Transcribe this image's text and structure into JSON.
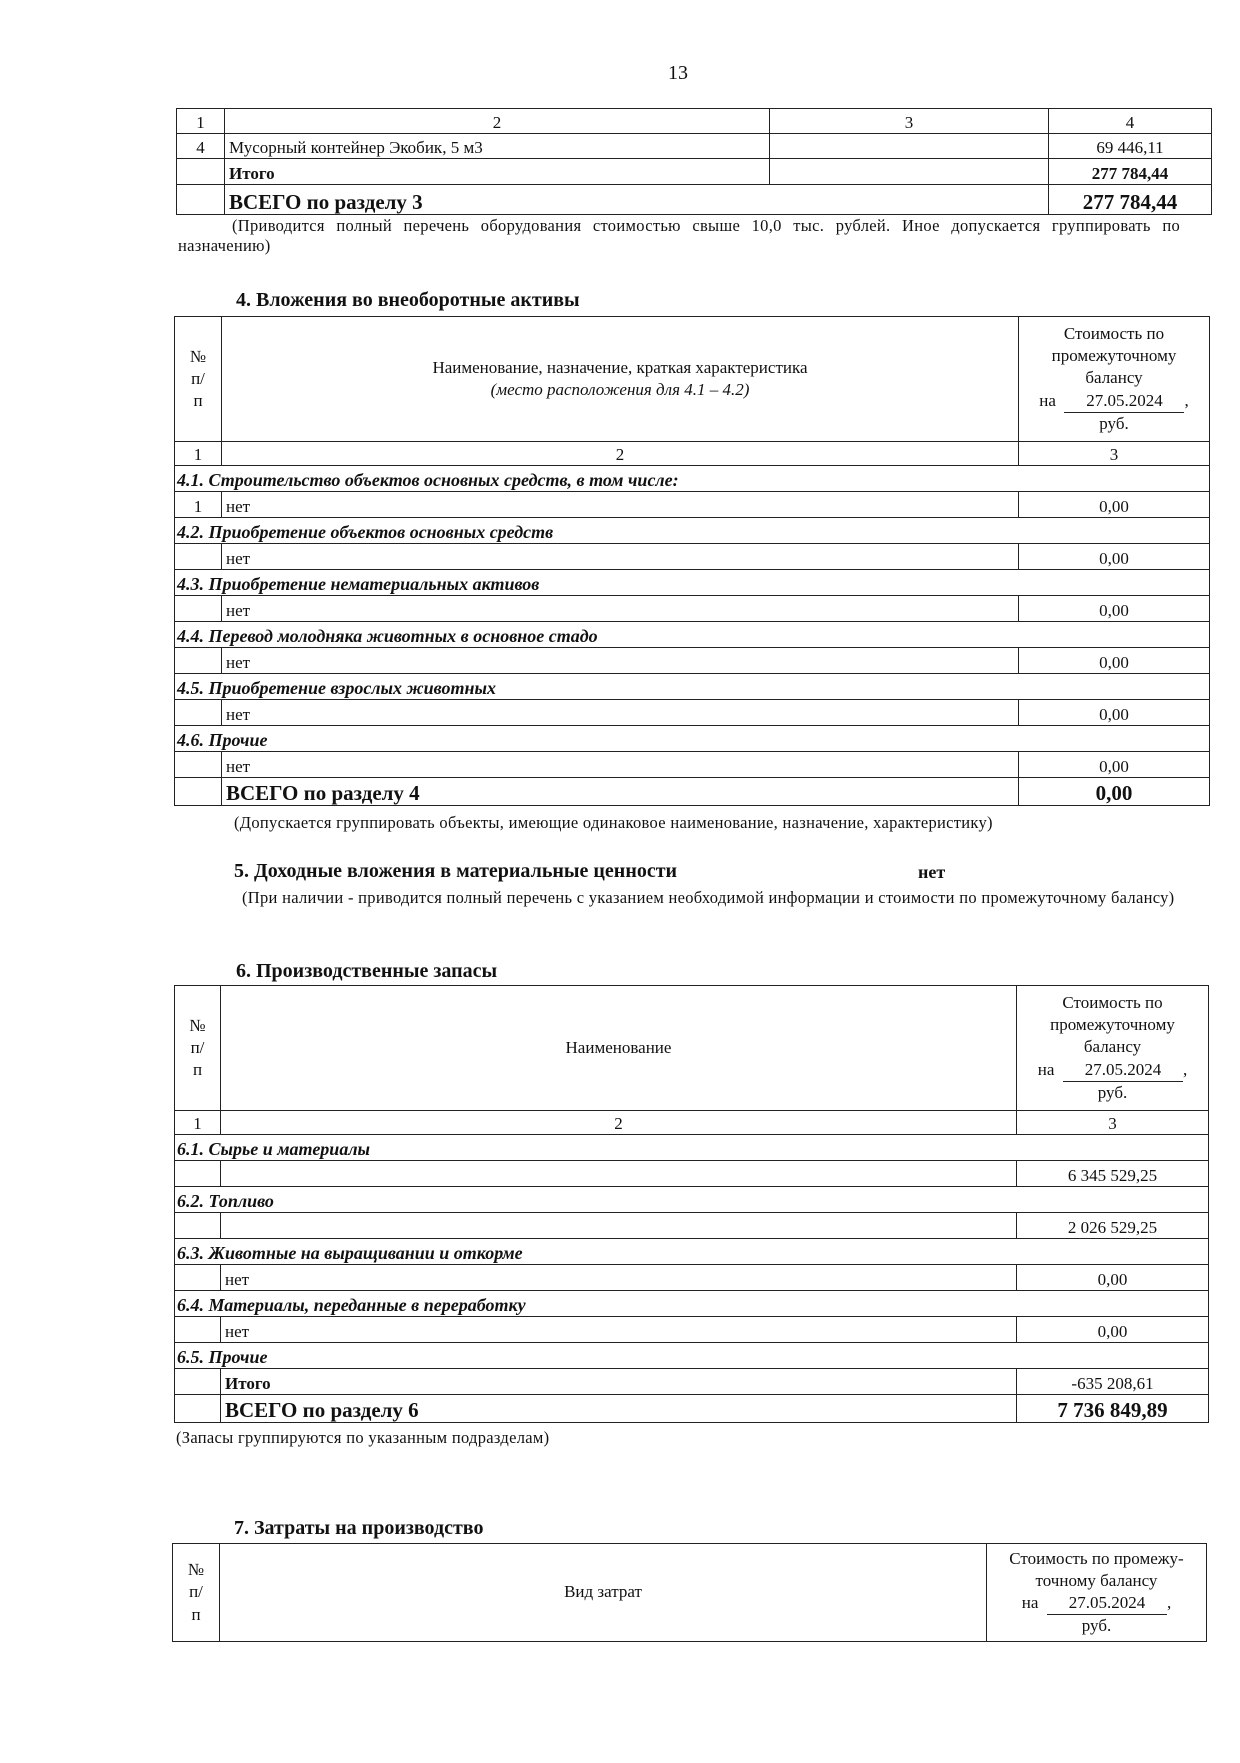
{
  "page_number": "13",
  "section3": {
    "col_numbers": [
      "1",
      "2",
      "3",
      "4"
    ],
    "rows": [
      {
        "no": "4",
        "name": "Мусорный контейнер Экобик, 5 м3",
        "col3": "",
        "value": "69 446,11"
      }
    ],
    "itogo_label": "Итого",
    "itogo_value": "277 784,44",
    "total_label": "ВСЕГО по разделу 3",
    "total_value": "277 784,44",
    "note": "(Приводится полный перечень оборудования стоимостью свыше 10,0 тыс. рублей. Иное допускается группировать по назначению)"
  },
  "section4": {
    "title": "4. Вложения во внеоборотные активы",
    "header": {
      "no": "№ п/п",
      "name": "Наименование, назначение, краткая характеристика",
      "name_sub": "(место расположения для 4.1 – 4.2)",
      "cost_line1": "Стоимость по промежуточному балансу",
      "na": "на",
      "date": "27.05.2024",
      "rub": "руб."
    },
    "col_numbers": [
      "1",
      "2",
      "3"
    ],
    "groups": [
      {
        "heading": "4.1. Строительство объектов основных средств, в том числе:",
        "no": "1",
        "name": "нет",
        "value": "0,00"
      },
      {
        "heading": "4.2. Приобретение объектов основных средств",
        "no": "",
        "name": "нет",
        "value": "0,00"
      },
      {
        "heading": "4.3. Приобретение нематериальных активов",
        "no": "",
        "name": "нет",
        "value": "0,00"
      },
      {
        "heading": "4.4. Перевод молодняка животных в основное стадо",
        "no": "",
        "name": "нет",
        "value": "0,00"
      },
      {
        "heading": "4.5. Приобретение взрослых животных",
        "no": "",
        "name": "нет",
        "value": "0,00"
      },
      {
        "heading": "4.6. Прочие",
        "no": "",
        "name": "нет",
        "value": "0,00"
      }
    ],
    "total_label": "ВСЕГО по разделу 4",
    "total_value": "0,00",
    "note": "(Допускается группировать объекты, имеющие одинаковое наименование, назначение, характеристику)"
  },
  "section5": {
    "title": "5.  Доходные вложения в материальные ценности",
    "value": "нет",
    "note": "(При наличии - приводится полный перечень с указанием необходимой информации и стоимости по промежуточному балансу)"
  },
  "section6": {
    "title": "6. Производственные запасы",
    "header": {
      "no": "№ п/п",
      "name": "Наименование",
      "cost_line1": "Стоимость по промежуточному балансу",
      "na": "на",
      "date": "27.05.2024",
      "rub": "руб."
    },
    "col_numbers": [
      "1",
      "2",
      "3"
    ],
    "groups": [
      {
        "heading": "6.1. Сырье и материалы",
        "name": "",
        "value": "6 345 529,25",
        "bold": false
      },
      {
        "heading": "6.2. Топливо",
        "name": "",
        "value": "2 026 529,25",
        "bold": false
      },
      {
        "heading": "6.3. Животные на выращивании и откорме",
        "name": "нет",
        "value": "0,00",
        "bold": false
      },
      {
        "heading": "6.4. Материалы, переданные в переработку",
        "name": "нет",
        "value": "0,00",
        "bold": false
      },
      {
        "heading": "6.5. Прочие",
        "name": "Итого",
        "value": "-635 208,61",
        "bold": true
      }
    ],
    "total_label": "ВСЕГО по разделу 6",
    "total_value": "7 736 849,89",
    "note": "(Запасы группируются по указанным подразделам)"
  },
  "section7": {
    "title": "7. Затраты на производство",
    "header": {
      "no": "№ п/п",
      "name": "Вид затрат",
      "cost_line1": "Стоимость по промежу-точному балансу",
      "na": "на",
      "date": "27.05.2024",
      "rub": "руб."
    }
  }
}
